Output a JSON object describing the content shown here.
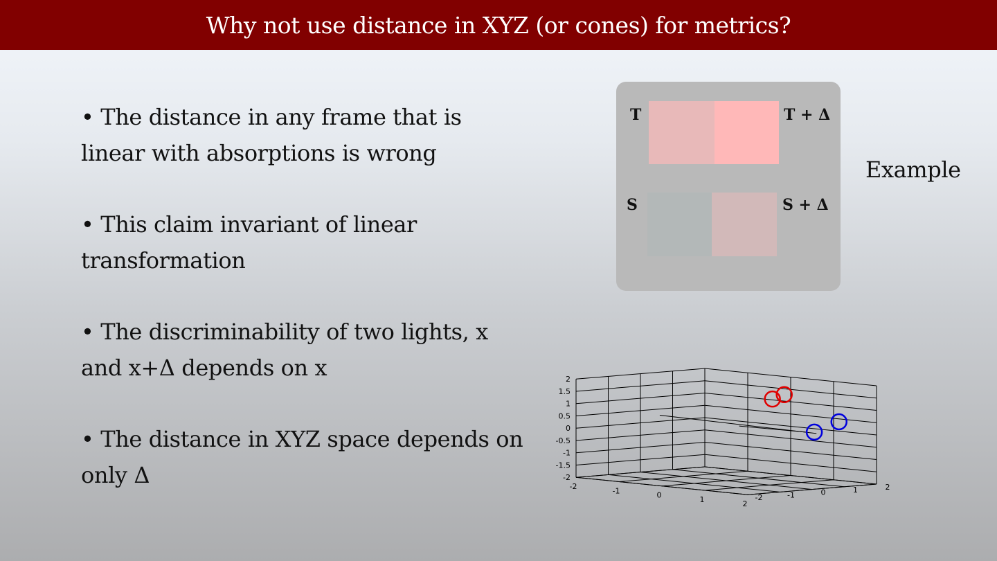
{
  "slide": {
    "title": "Why not use distance in XYZ (or cones) for metrics?",
    "bullets": [
      "• The distance in any frame that is linear with absorptions is wrong",
      "• This claim invariant of linear transformation",
      "• The discriminability of two lights, x and x+Δ depends on x",
      "• The distance in XYZ space depends on only Δ"
    ],
    "example_label": "Example"
  },
  "patch_panel": {
    "labels": {
      "t": "T",
      "t_delta": "T + Δ",
      "s": "S",
      "s_delta": "S + Δ"
    },
    "colors": {
      "panel_bg": "#b9b9b9",
      "t": "#e8b9b9",
      "t_delta": "#ffb8b8",
      "s": "#b3b8b8",
      "s_delta": "#d2b9b9"
    }
  },
  "chart_data": {
    "type": "scatter",
    "projection": "3d",
    "grid": true,
    "xlim": [
      -2,
      2
    ],
    "ylim": [
      -2,
      2
    ],
    "zlim": [
      -2,
      2
    ],
    "x_ticks": [
      "-2",
      "-1",
      "0",
      "1",
      "2"
    ],
    "y_ticks": [
      "-2",
      "-1",
      "0",
      "1",
      "2"
    ],
    "z_ticks": [
      "-2",
      "-1.5",
      "-1",
      "-0.5",
      "0",
      "0.5",
      "1",
      "1.5",
      "2"
    ],
    "series": [
      {
        "color": "#e00000",
        "marker": "open-circle",
        "points": [
          [
            0.1,
            1.3,
            1.2
          ],
          [
            0.6,
            1.0,
            1.5
          ]
        ]
      },
      {
        "color": "#0000dd",
        "marker": "open-circle",
        "points": [
          [
            1.3,
            1.0,
            0.1
          ],
          [
            1.5,
            1.5,
            0.5
          ]
        ]
      }
    ]
  }
}
